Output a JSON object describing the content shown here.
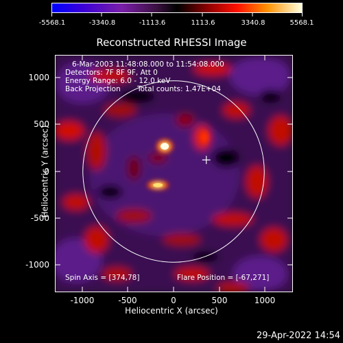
{
  "colorbar": {
    "tick_labels": [
      "-5568.1",
      "-3340.8",
      "-1113.6",
      "1113.6",
      "3340.8",
      "5568.1"
    ],
    "min": -5568.1,
    "max": 5568.1
  },
  "title": "Reconstructed RHESSI Image",
  "axes": {
    "xlabel": "Heliocentric X (arcsec)",
    "ylabel": "Heliocentric Y (arcsec)",
    "xticks": [
      "-1000",
      "-500",
      "0",
      "500",
      "1000"
    ],
    "yticks": [
      "1000",
      "500",
      "0",
      "-500",
      "-1000"
    ]
  },
  "info": {
    "time": "6-Mar-2003 11:48:08.000 to 11:54:08.000",
    "detectors": "Detectors: 7F 8F 9F, Att 0",
    "energy": "Energy Range: 6.0 - 12.0 keV",
    "method": "Back Projection",
    "counts": "Total counts: 1.47E+04",
    "spin_axis": "Spin Axis = [374,78]",
    "flare_position": "Flare Position = [-67,271]"
  },
  "footer": {
    "date": "29-Apr-2022 14:54"
  }
}
